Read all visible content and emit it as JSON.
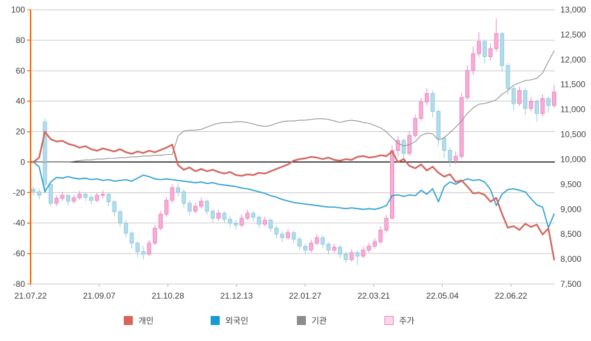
{
  "chart_data": {
    "type": "candlestick+line",
    "title": "",
    "left_axis": {
      "min": -80,
      "max": 100,
      "tick_step": 20,
      "tick_labels": [
        "100",
        "80",
        "60",
        "40",
        "20",
        "0",
        "-20",
        "-40",
        "-60",
        "-80"
      ],
      "axis_color": "#ff6600"
    },
    "right_axis": {
      "min": 7500,
      "max": 13000,
      "tick_step": 500,
      "tick_labels": [
        "13,000",
        "12,500",
        "12,000",
        "11,500",
        "11,000",
        "10,500",
        "10,000",
        "9,500",
        "9,000",
        "8,500",
        "8,000",
        "7,500"
      ]
    },
    "x_labels": [
      "21.07.22",
      "21.09.07",
      "21.10.28",
      "21.12.13",
      "22.01.27",
      "22.03.21",
      "22.05.04",
      "22.06.22"
    ],
    "grid": {
      "horizontal": true,
      "vertical": false,
      "color": "#c9c9c9",
      "zero_line_color": "#1a1a1a"
    },
    "legend": [
      {
        "label": "개인",
        "fill": "#d9655a",
        "border": "#d9655a"
      },
      {
        "label": "외국인",
        "fill": "#169bd5",
        "border": "#169bd5"
      },
      {
        "label": "기관",
        "fill": "#8c8c8c",
        "border": "#8c8c8c"
      },
      {
        "label": "주가",
        "fill": "#fbd9ec",
        "border": "#f080bc"
      }
    ],
    "series": [
      {
        "name": "개인",
        "axis": "left",
        "color": "#d2675e",
        "width": 2.4,
        "values": [
          0,
          3,
          20,
          15,
          13.5,
          14,
          12,
          11,
          9.5,
          10.5,
          8.5,
          7.5,
          9,
          8,
          7,
          8.5,
          6.5,
          5.5,
          7,
          6,
          7.5,
          6.5,
          8,
          9.5,
          11.5,
          -2,
          -5,
          -3.5,
          -6,
          -4.5,
          -6,
          -5,
          -6.5,
          -7.5,
          -6.5,
          -8.5,
          -9,
          -8,
          -8.5,
          -7,
          -7.5,
          -6,
          -4.5,
          -3,
          -1.5,
          1,
          2,
          2.5,
          3.5,
          3,
          2,
          3,
          1.5,
          1,
          2,
          1.5,
          3.5,
          4,
          3,
          3.5,
          4.5,
          4,
          7,
          0,
          2,
          -2.5,
          -4,
          -1.5,
          -5.5,
          -3,
          -7,
          -9.5,
          -8,
          -13,
          -12,
          -16,
          -20.5,
          -20,
          -21.5,
          -26,
          -23.5,
          -34,
          -43,
          -42,
          -44.5,
          -40.5,
          -42.5,
          -41,
          -47.5,
          -43.5,
          -64
        ]
      },
      {
        "name": "외국인",
        "axis": "left",
        "color": "#2b9fd1",
        "width": 1.7,
        "values": [
          0,
          -3,
          -19.5,
          -13,
          -10,
          -10.5,
          -9.5,
          -10.5,
          -11,
          -10.5,
          -11.5,
          -11,
          -12,
          -11.5,
          -12.5,
          -12,
          -11.5,
          -12.5,
          -10.5,
          -8.5,
          -9.5,
          -11,
          -11.5,
          -11,
          -11.5,
          -12,
          -12.5,
          -13,
          -13.5,
          -13,
          -14,
          -13.5,
          -14.5,
          -15,
          -15.5,
          -16,
          -17,
          -17.5,
          -18.5,
          -19.5,
          -20.5,
          -22,
          -23,
          -24.5,
          -25.5,
          -26.5,
          -27,
          -27.5,
          -28,
          -28.5,
          -29,
          -29.5,
          -29.5,
          -30,
          -30.5,
          -30,
          -30.5,
          -31,
          -30.5,
          -31,
          -30,
          -28.5,
          -22,
          -21.5,
          -22.5,
          -21.5,
          -22,
          -18.5,
          -21,
          -17.5,
          -26,
          -16,
          -13,
          -14.5,
          -12.5,
          -11,
          -12,
          -11.5,
          -13,
          -18,
          -28.5,
          -21,
          -18,
          -17.5,
          -18.5,
          -19.5,
          -24,
          -28,
          -29.5,
          -43,
          -34
        ]
      },
      {
        "name": "기관",
        "axis": "left",
        "color": "#909090",
        "width": 1.1,
        "values": [
          0,
          0,
          0,
          0,
          0,
          0,
          0,
          0.5,
          1,
          1.5,
          1.5,
          2,
          2,
          2.5,
          2.5,
          3,
          3,
          3.5,
          3.5,
          4,
          4,
          4.5,
          4.5,
          5,
          5,
          17,
          20.5,
          21,
          21,
          21.5,
          23,
          24.5,
          25.5,
          26,
          26,
          26.5,
          26.5,
          26,
          25,
          24,
          23.5,
          24,
          25.5,
          26.5,
          27,
          27,
          27.5,
          27.5,
          28,
          28.5,
          28.5,
          28,
          27,
          26,
          27,
          27.5,
          27,
          26,
          25.5,
          24,
          22.5,
          20,
          16,
          12.5,
          10.5,
          11.5,
          13.5,
          17.5,
          19,
          18.5,
          14.5,
          16,
          19.5,
          23,
          27,
          32,
          35.5,
          38,
          38.5,
          39.5,
          41,
          44.5,
          47,
          50.5,
          52,
          53.5,
          54,
          55,
          58.5,
          66,
          73
        ]
      }
    ],
    "candles": {
      "name": "주가",
      "axis": "right",
      "up": {
        "fill": "#f5aed6",
        "stroke": "#ef87c1"
      },
      "down": {
        "fill": "#b3dcec",
        "stroke": "#93cbe0"
      },
      "ohlc": [
        [
          9400,
          9460,
          9280,
          9350
        ],
        [
          9350,
          9420,
          9200,
          9280
        ],
        [
          10750,
          10820,
          9400,
          9500
        ],
        [
          9500,
          9550,
          9050,
          9120
        ],
        [
          9120,
          9280,
          9060,
          9220
        ],
        [
          9220,
          9350,
          9170,
          9280
        ],
        [
          9280,
          9300,
          9080,
          9160
        ],
        [
          9160,
          9290,
          9110,
          9230
        ],
        [
          9230,
          9370,
          9190,
          9300
        ],
        [
          9300,
          9340,
          9160,
          9240
        ],
        [
          9240,
          9290,
          9100,
          9180
        ],
        [
          9180,
          9330,
          9140,
          9280
        ],
        [
          9280,
          9380,
          9210,
          9300
        ],
        [
          9300,
          9330,
          9060,
          9150
        ],
        [
          9150,
          9180,
          8860,
          8950
        ],
        [
          8950,
          8990,
          8640,
          8720
        ],
        [
          8720,
          8780,
          8430,
          8520
        ],
        [
          8520,
          8560,
          8210,
          8320
        ],
        [
          8320,
          8360,
          8040,
          8150
        ],
        [
          8150,
          8260,
          7990,
          8100
        ],
        [
          8100,
          8380,
          8060,
          8320
        ],
        [
          8320,
          8690,
          8280,
          8620
        ],
        [
          8620,
          8970,
          8570,
          8900
        ],
        [
          8900,
          9240,
          8850,
          9180
        ],
        [
          9180,
          9500,
          9130,
          9430
        ],
        [
          9430,
          9520,
          9260,
          9350
        ],
        [
          9350,
          9400,
          9040,
          9120
        ],
        [
          9120,
          9180,
          8880,
          8960
        ],
        [
          8960,
          9130,
          8910,
          9060
        ],
        [
          9060,
          9230,
          9010,
          9160
        ],
        [
          9160,
          9200,
          8890,
          8960
        ],
        [
          8960,
          9010,
          8740,
          8820
        ],
        [
          8820,
          8990,
          8770,
          8920
        ],
        [
          8920,
          8960,
          8720,
          8800
        ],
        [
          8800,
          8860,
          8640,
          8720
        ],
        [
          8720,
          8790,
          8590,
          8680
        ],
        [
          8680,
          8890,
          8640,
          8820
        ],
        [
          8820,
          8990,
          8780,
          8920
        ],
        [
          8920,
          8970,
          8760,
          8840
        ],
        [
          8840,
          8880,
          8620,
          8700
        ],
        [
          8700,
          8850,
          8660,
          8780
        ],
        [
          8780,
          8820,
          8540,
          8620
        ],
        [
          8620,
          8670,
          8420,
          8500
        ],
        [
          8500,
          8560,
          8340,
          8430
        ],
        [
          8430,
          8600,
          8390,
          8530
        ],
        [
          8530,
          8570,
          8320,
          8400
        ],
        [
          8400,
          8450,
          8180,
          8260
        ],
        [
          8260,
          8310,
          8090,
          8180
        ],
        [
          8180,
          8390,
          8140,
          8320
        ],
        [
          8320,
          8500,
          8280,
          8430
        ],
        [
          8430,
          8470,
          8220,
          8300
        ],
        [
          8300,
          8340,
          8090,
          8180
        ],
        [
          8180,
          8310,
          8130,
          8240
        ],
        [
          8240,
          8280,
          8010,
          8100
        ],
        [
          8100,
          8140,
          7920,
          7990
        ],
        [
          7990,
          8200,
          7950,
          8130
        ],
        [
          8130,
          8180,
          7880,
          8060
        ],
        [
          8060,
          8250,
          8020,
          8180
        ],
        [
          8180,
          8330,
          8130,
          8260
        ],
        [
          8260,
          8420,
          8210,
          8350
        ],
        [
          8350,
          8650,
          8310,
          8580
        ],
        [
          8580,
          8890,
          8530,
          8820
        ],
        [
          8820,
          10280,
          8790,
          10180
        ],
        [
          10180,
          10470,
          10060,
          10380
        ],
        [
          10380,
          10420,
          9990,
          10120
        ],
        [
          10120,
          10560,
          10070,
          10480
        ],
        [
          10480,
          10900,
          10430,
          10820
        ],
        [
          10820,
          11240,
          10770,
          11150
        ],
        [
          11150,
          11420,
          11080,
          11320
        ],
        [
          11320,
          11380,
          10840,
          10960
        ],
        [
          10960,
          11010,
          10280,
          10420
        ],
        [
          10420,
          10470,
          10020,
          10180
        ],
        [
          10180,
          10240,
          9840,
          9980
        ],
        [
          9980,
          10160,
          9900,
          10060
        ],
        [
          10060,
          11330,
          10010,
          11240
        ],
        [
          11240,
          11890,
          11190,
          11780
        ],
        [
          11780,
          12260,
          11690,
          12120
        ],
        [
          12120,
          12550,
          12050,
          12360
        ],
        [
          12360,
          12400,
          11930,
          12060
        ],
        [
          12060,
          12330,
          11980,
          12220
        ],
        [
          12220,
          12820,
          12160,
          12520
        ],
        [
          12520,
          12560,
          11760,
          11880
        ],
        [
          11880,
          11940,
          11300,
          11420
        ],
        [
          11420,
          11470,
          10980,
          11120
        ],
        [
          11120,
          11460,
          11070,
          11380
        ],
        [
          11380,
          11420,
          10890,
          11020
        ],
        [
          11020,
          11250,
          10960,
          11160
        ],
        [
          11160,
          11200,
          10760,
          10920
        ],
        [
          10920,
          11310,
          10870,
          11220
        ],
        [
          11220,
          11260,
          10940,
          11080
        ],
        [
          11080,
          11500,
          11030,
          11350
        ]
      ]
    }
  }
}
